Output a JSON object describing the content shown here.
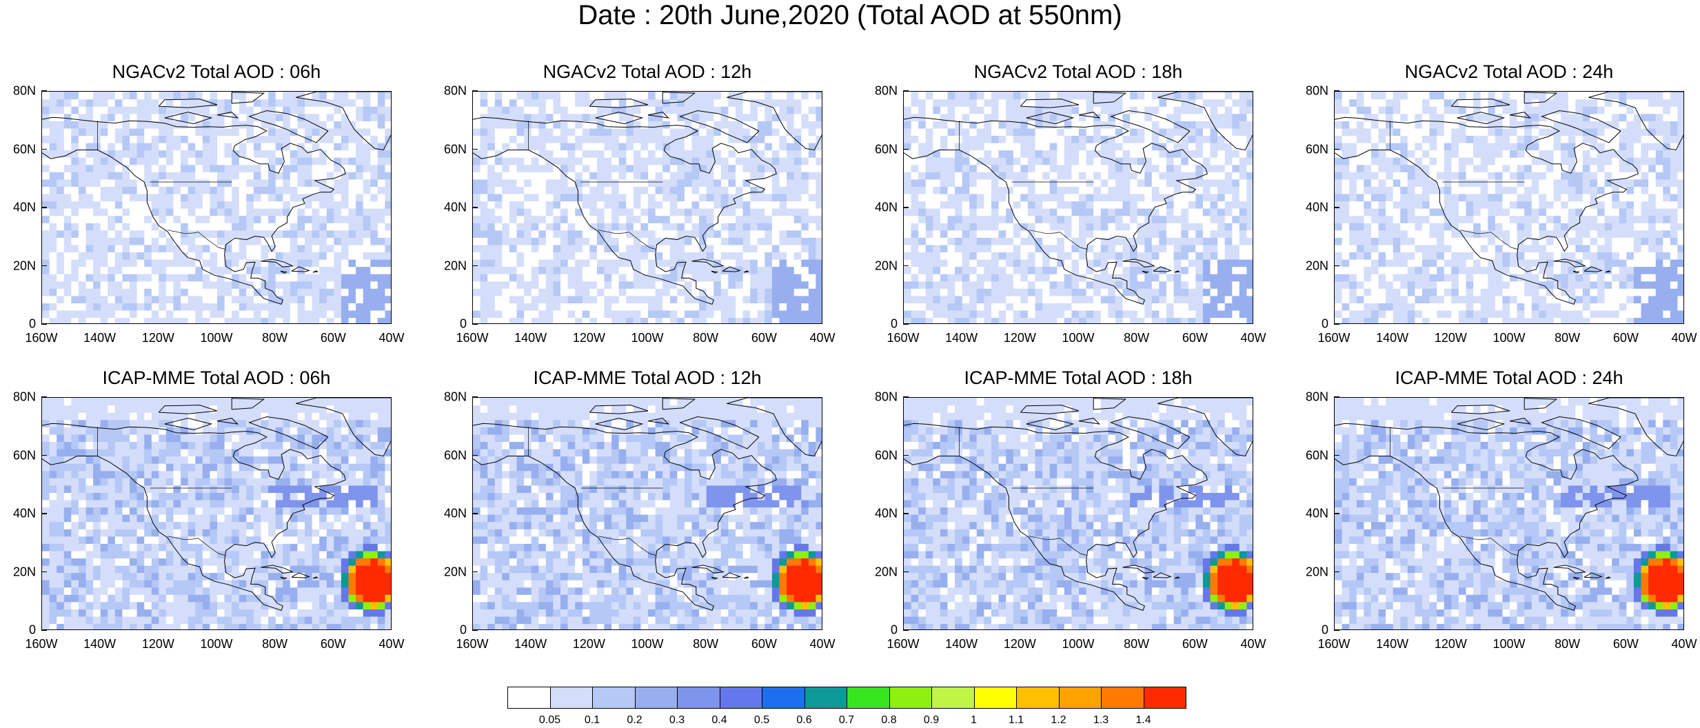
{
  "title": "Date : 20th June,2020 (Total AOD at 550nm)",
  "panels": [
    {
      "title": "NGACv2 Total AOD : 06h",
      "model": "NGACv2",
      "hour": "06h",
      "dust_plume": false
    },
    {
      "title": "NGACv2 Total AOD : 12h",
      "model": "NGACv2",
      "hour": "12h",
      "dust_plume": false
    },
    {
      "title": "NGACv2 Total AOD : 18h",
      "model": "NGACv2",
      "hour": "18h",
      "dust_plume": false
    },
    {
      "title": "NGACv2 Total AOD : 24h",
      "model": "NGACv2",
      "hour": "24h",
      "dust_plume": false
    },
    {
      "title": "ICAP-MME Total AOD : 06h",
      "model": "ICAP-MME",
      "hour": "06h",
      "dust_plume": true
    },
    {
      "title": "ICAP-MME Total AOD : 12h",
      "model": "ICAP-MME",
      "hour": "12h",
      "dust_plume": true
    },
    {
      "title": "ICAP-MME Total AOD : 18h",
      "model": "ICAP-MME",
      "hour": "18h",
      "dust_plume": true
    },
    {
      "title": "ICAP-MME Total AOD : 24h",
      "model": "ICAP-MME",
      "hour": "24h",
      "dust_plume": true
    }
  ],
  "axes": {
    "y_labels": [
      "80N",
      "60N",
      "40N",
      "20N",
      "0"
    ],
    "x_labels": [
      "160W",
      "140W",
      "120W",
      "100W",
      "80W",
      "60W",
      "40W"
    ],
    "lat_range": [
      0,
      80
    ],
    "lon_range": [
      -160,
      -40
    ]
  },
  "colorbar": {
    "colors": [
      "#ffffff",
      "#d4defa",
      "#b5c8f6",
      "#97afef",
      "#7f94ec",
      "#6478ec",
      "#1e6ff0",
      "#0d9a96",
      "#37e61e",
      "#8fef10",
      "#c0f545",
      "#ffff00",
      "#ffc000",
      "#ffa200",
      "#ff7a00",
      "#ff2a00"
    ],
    "labels": [
      "0.05",
      "0.1",
      "0.2",
      "0.3",
      "0.4",
      "0.5",
      "0.6",
      "0.7",
      "0.8",
      "0.9",
      "1",
      "1.1",
      "1.2",
      "1.3",
      "1.4"
    ]
  }
}
